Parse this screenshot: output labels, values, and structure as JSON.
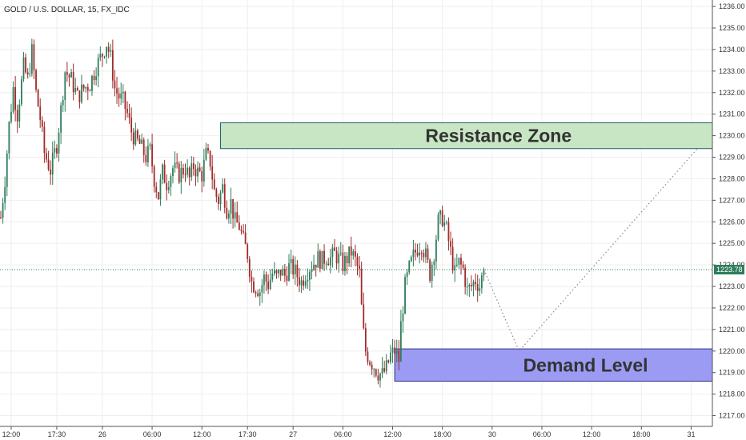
{
  "chart_data": {
    "type": "candlestick",
    "title": "GOLD / U.S. DOLLAR, 15, FX_IDC",
    "ylim": [
      1216.5,
      1236.3
    ],
    "xlabel": "",
    "ylabel": "",
    "grid": true,
    "y_ticks": [
      1217,
      1218,
      1219,
      1220,
      1221,
      1222,
      1223,
      1224,
      1225,
      1226,
      1227,
      1228,
      1229,
      1230,
      1231,
      1232,
      1233,
      1234,
      1235,
      1236
    ],
    "y_tick_labels": [
      "1217.00",
      "1218.00",
      "1219.00",
      "1220.00",
      "1221.00",
      "1222.00",
      "1223.00",
      "1224.00",
      "1225.00",
      "1226.00",
      "1227.00",
      "1228.00",
      "1229.00",
      "1230.00",
      "1231.00",
      "1232.00",
      "1233.00",
      "1234.00",
      "1235.00",
      "1236.00"
    ],
    "x_ticks": [
      {
        "label": "12:00",
        "bar": 5
      },
      {
        "label": "17:30",
        "bar": 27
      },
      {
        "label": "26",
        "bar": 49
      },
      {
        "label": "06:00",
        "bar": 73
      },
      {
        "label": "12:00",
        "bar": 97
      },
      {
        "label": "17:30",
        "bar": 119
      },
      {
        "label": "27",
        "bar": 141
      },
      {
        "label": "06:00",
        "bar": 165
      },
      {
        "label": "12:00",
        "bar": 189
      },
      {
        "label": "18:00",
        "bar": 213
      },
      {
        "label": "30",
        "bar": 237
      },
      {
        "label": "06:00",
        "bar": 261
      },
      {
        "label": "12:00",
        "bar": 285
      },
      {
        "label": "18:00",
        "bar": 309
      },
      {
        "label": "31",
        "bar": 333
      }
    ],
    "waypoints": [
      [
        0,
        1226.2
      ],
      [
        2,
        1228.0
      ],
      [
        4,
        1230.5
      ],
      [
        6,
        1232.2
      ],
      [
        8,
        1231.0
      ],
      [
        11,
        1233.2
      ],
      [
        13,
        1232.6
      ],
      [
        15,
        1233.9
      ],
      [
        17,
        1232.0
      ],
      [
        19,
        1230.8
      ],
      [
        21,
        1229.2
      ],
      [
        24,
        1228.4
      ],
      [
        27,
        1229.6
      ],
      [
        29,
        1231.2
      ],
      [
        31,
        1233.0
      ],
      [
        34,
        1232.6
      ],
      [
        37,
        1231.8
      ],
      [
        40,
        1232.2
      ],
      [
        43,
        1232.4
      ],
      [
        46,
        1233.2
      ],
      [
        49,
        1233.8
      ],
      [
        51,
        1234.3
      ],
      [
        53,
        1233.6
      ],
      [
        55,
        1232.2
      ],
      [
        57,
        1231.8
      ],
      [
        59,
        1231.6
      ],
      [
        61,
        1231.0
      ],
      [
        63,
        1230.2
      ],
      [
        65,
        1229.8
      ],
      [
        67,
        1229.6
      ],
      [
        70,
        1229.0
      ],
      [
        72,
        1229.3
      ],
      [
        74,
        1228.0
      ],
      [
        76,
        1227.2
      ],
      [
        78,
        1228.3
      ],
      [
        80,
        1227.8
      ],
      [
        83,
        1228.5
      ],
      [
        86,
        1228.2
      ],
      [
        89,
        1228.5
      ],
      [
        91,
        1228.0
      ],
      [
        93,
        1228.6
      ],
      [
        95,
        1228.3
      ],
      [
        97,
        1228.2
      ],
      [
        99,
        1229.1
      ],
      [
        101,
        1228.8
      ],
      [
        103,
        1227.4
      ],
      [
        105,
        1227.0
      ],
      [
        107,
        1227.6
      ],
      [
        109,
        1226.6
      ],
      [
        111,
        1226.9
      ],
      [
        113,
        1226.0
      ],
      [
        115,
        1225.8
      ],
      [
        117,
        1225.1
      ],
      [
        119,
        1224.5
      ],
      [
        121,
        1223.2
      ],
      [
        123,
        1223.0
      ],
      [
        125,
        1222.8
      ],
      [
        127,
        1223.4
      ],
      [
        129,
        1223.1
      ],
      [
        131,
        1223.6
      ],
      [
        133,
        1223.4
      ],
      [
        135,
        1223.7
      ],
      [
        137,
        1223.5
      ],
      [
        139,
        1223.9
      ],
      [
        141,
        1223.8
      ],
      [
        143,
        1223.5
      ],
      [
        145,
        1223.2
      ],
      [
        147,
        1223.6
      ],
      [
        149,
        1223.9
      ],
      [
        151,
        1224.1
      ],
      [
        153,
        1224.3
      ],
      [
        155,
        1224.2
      ],
      [
        157,
        1224.4
      ],
      [
        159,
        1224.3
      ],
      [
        161,
        1224.5
      ],
      [
        163,
        1224.3
      ],
      [
        165,
        1224.0
      ],
      [
        167,
        1224.3
      ],
      [
        169,
        1224.6
      ],
      [
        171,
        1224.2
      ],
      [
        173,
        1223.6
      ],
      [
        174,
        1222.0
      ],
      [
        175,
        1220.8
      ],
      [
        176,
        1220.0
      ],
      [
        178,
        1219.6
      ],
      [
        180,
        1219.3
      ],
      [
        182,
        1219.0
      ],
      [
        184,
        1218.9
      ],
      [
        186,
        1219.2
      ],
      [
        188,
        1219.8
      ],
      [
        190,
        1220.0
      ],
      [
        192,
        1219.6
      ],
      [
        193,
        1221.2
      ],
      [
        195,
        1223.0
      ],
      [
        197,
        1223.8
      ],
      [
        199,
        1224.4
      ],
      [
        201,
        1224.8
      ],
      [
        203,
        1225.0
      ],
      [
        205,
        1224.4
      ],
      [
        207,
        1223.6
      ],
      [
        209,
        1224.6
      ],
      [
        211,
        1226.0
      ],
      [
        213,
        1226.2
      ],
      [
        215,
        1225.6
      ],
      [
        217,
        1224.6
      ],
      [
        219,
        1223.6
      ],
      [
        221,
        1224.1
      ],
      [
        223,
        1223.8
      ],
      [
        225,
        1222.8
      ],
      [
        227,
        1223.0
      ],
      [
        229,
        1223.3
      ],
      [
        231,
        1223.0
      ],
      [
        233,
        1223.8
      ]
    ],
    "last_price": 1223.78,
    "last_price_label": "1223.78",
    "zones": [
      {
        "name": "Resistance Zone",
        "from": 1229.4,
        "to": 1230.6,
        "start_bar": 106,
        "color": "#c8e6c4",
        "border": "#1f5f64"
      },
      {
        "name": "Demand Level",
        "from": 1218.6,
        "to": 1220.1,
        "start_bar": 190,
        "color": "#9b9bf4",
        "border": "#30308a"
      }
    ],
    "projection": [
      [
        233,
        1223.78
      ],
      [
        250,
        1220.0
      ],
      [
        336,
        1229.4
      ]
    ],
    "colors": {
      "up": "#2e7d5b",
      "down": "#a12a2a",
      "grid": "#eeeeee",
      "axis": "#555555",
      "price": "#2e7d5b"
    }
  }
}
